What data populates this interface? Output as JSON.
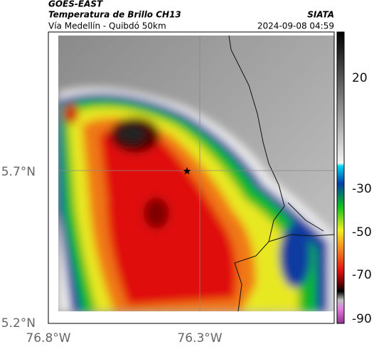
{
  "header": {
    "source": "GOES-EAST",
    "product": "Temperatura de Brillo CH13",
    "route": "Vía Medellín - Quibdó 50km",
    "agency": "SIATA",
    "timestamp": "2024-09-08 04:59"
  },
  "axes": {
    "lat_labels": [
      "5.7°N",
      "5.2°N"
    ],
    "lon_labels": [
      "76.8°W",
      "76.3°W"
    ]
  },
  "colorbar": {
    "ticks": [
      "20",
      "-30",
      "-50",
      "-70",
      "-90"
    ]
  }
}
